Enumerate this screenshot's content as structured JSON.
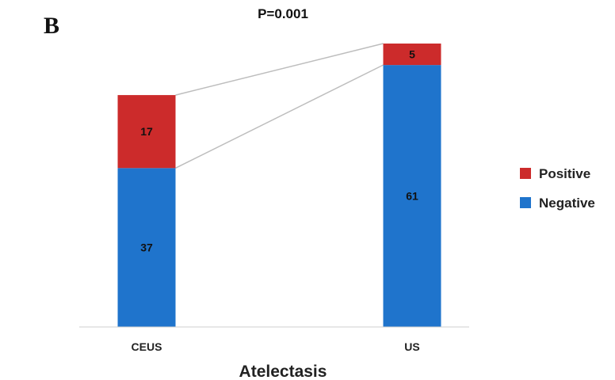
{
  "panel_label": "B",
  "chart_data": {
    "type": "bar",
    "stacked": true,
    "title": "P=0.001",
    "xlabel": "Atelectasis",
    "ylabel": "",
    "categories": [
      "CEUS",
      "US"
    ],
    "series": [
      {
        "name": "Negative",
        "values": [
          37,
          61
        ],
        "color": "#1f74cc"
      },
      {
        "name": "Positive",
        "values": [
          17,
          5
        ],
        "color": "#cc2b2b"
      }
    ],
    "ylim": [
      0,
      66
    ],
    "grid": false,
    "legend_position": "right",
    "connector_lines": true
  }
}
